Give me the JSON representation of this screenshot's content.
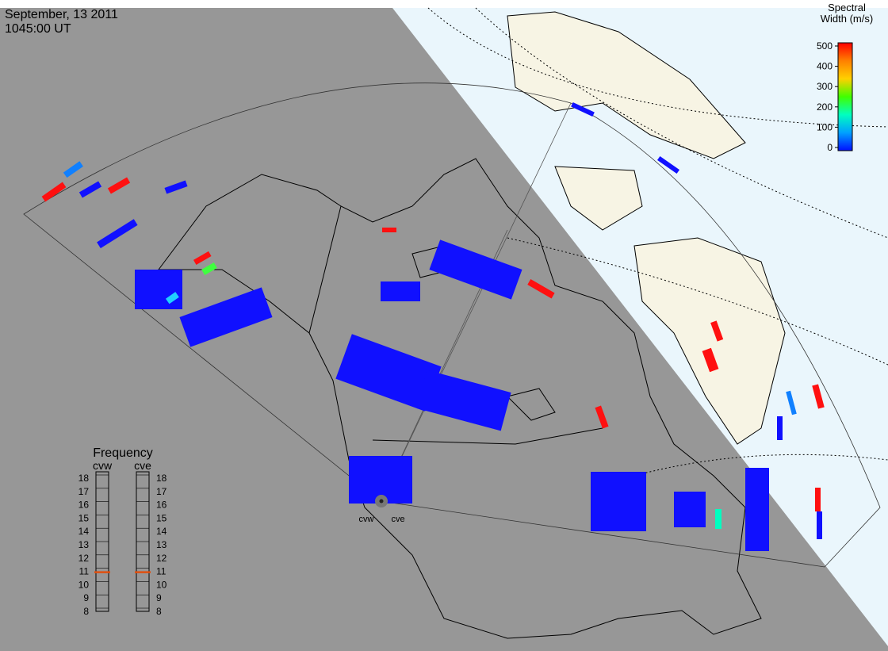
{
  "header": {
    "date": "September, 13 2011",
    "time": "1045:00 UT"
  },
  "colorbar": {
    "title_line1": "Spectral",
    "title_line2": "Width (m/s)",
    "ticks": [
      0,
      100,
      200,
      300,
      400,
      500
    ],
    "lim": [
      0,
      500
    ],
    "colors": [
      "#0010ff",
      "#00a0ff",
      "#00ffc0",
      "#40ff00",
      "#ffd000",
      "#ff8000",
      "#ff0000"
    ]
  },
  "frequency": {
    "title": "Frequency",
    "lim": [
      8,
      18
    ],
    "ticks": [
      8,
      9,
      10,
      11,
      12,
      13,
      14,
      15,
      16,
      17,
      18
    ],
    "radars": [
      {
        "name": "cvw",
        "marker": 10.7,
        "marker_color": "#e05010"
      },
      {
        "name": "cve",
        "marker": 10.7,
        "marker_color": "#e05010"
      }
    ]
  },
  "sites": [
    "cvw",
    "cve"
  ]
}
